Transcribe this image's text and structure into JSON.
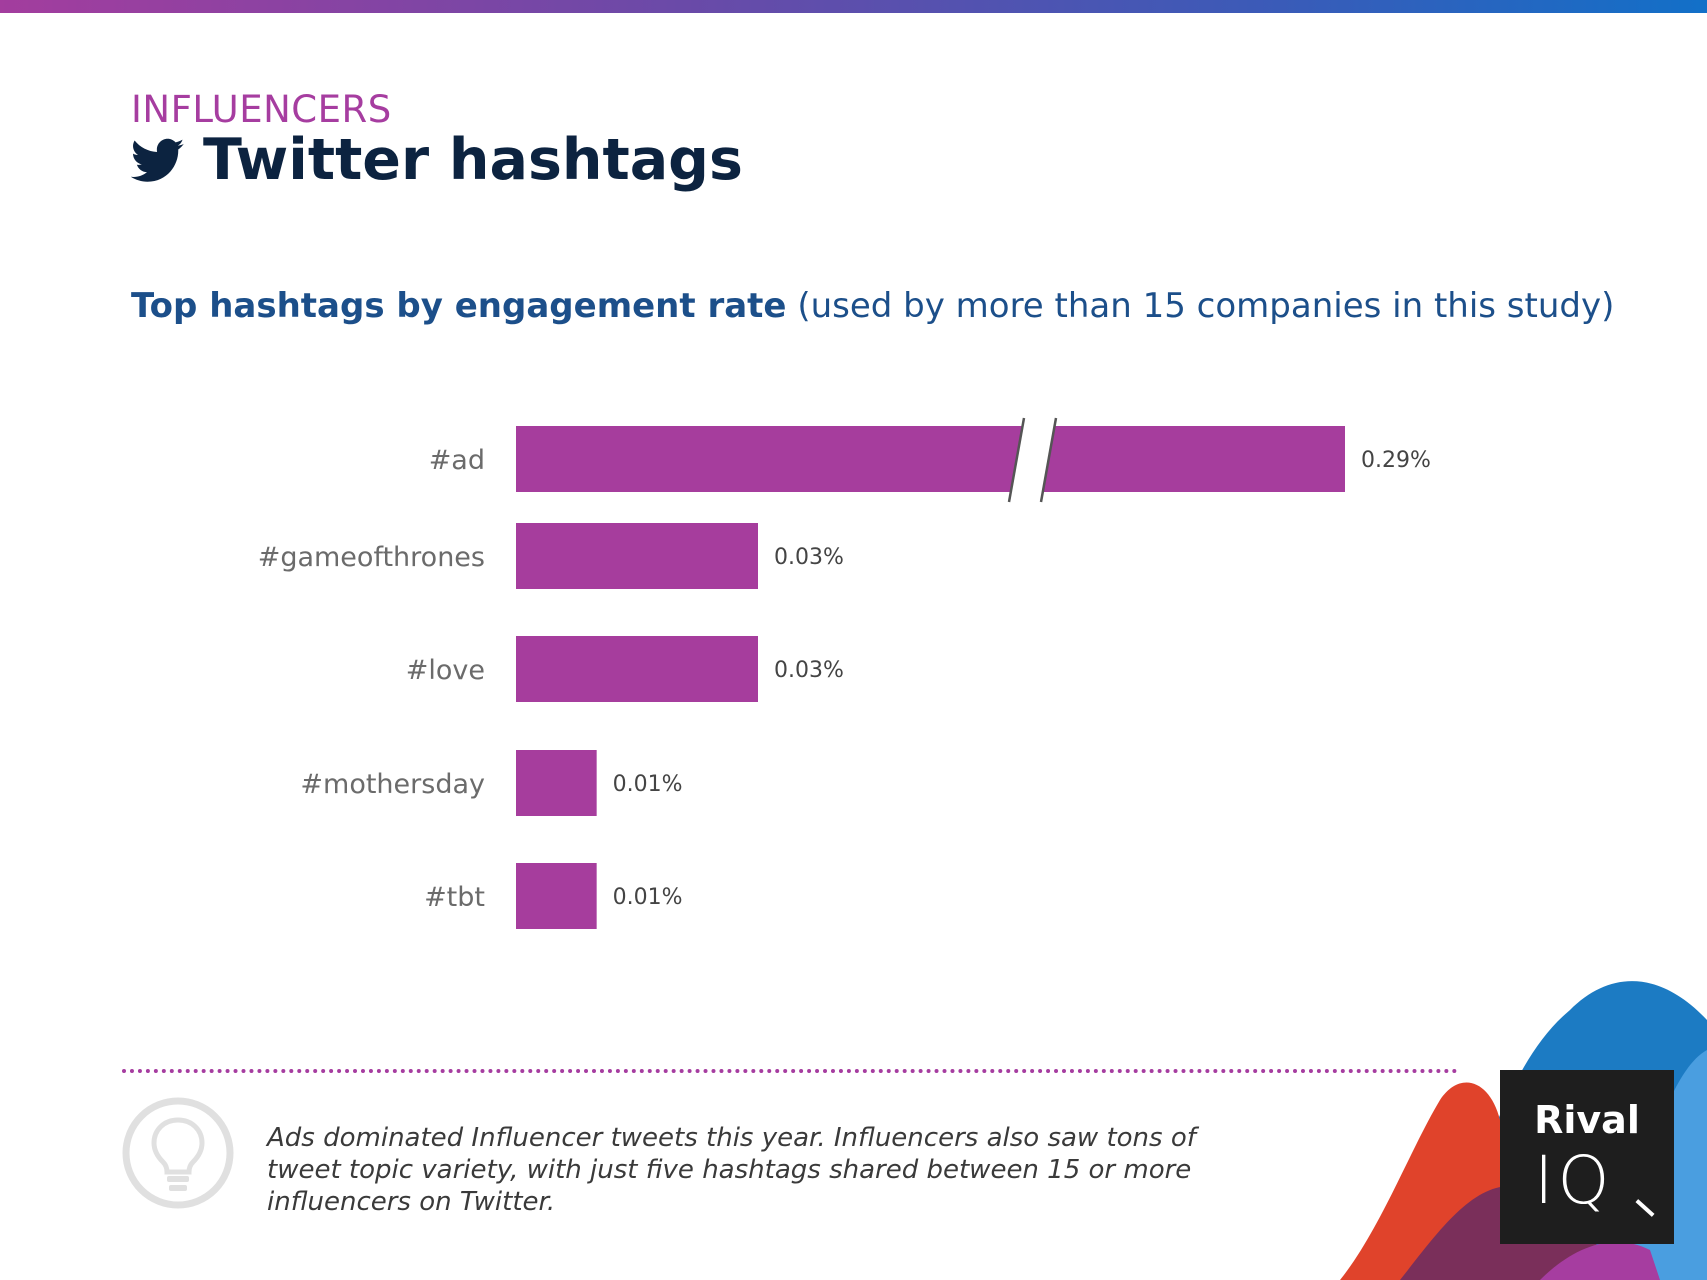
{
  "header": {
    "section": "INFLUENCERS",
    "title": "Twitter hashtags",
    "icon": "twitter-bird-icon"
  },
  "colors": {
    "accent": "#a63da0",
    "title": "#0c2340",
    "subtitle": "#1c4f8a",
    "bar": "#a63d9d"
  },
  "chart_data": {
    "type": "bar",
    "orientation": "horizontal",
    "title_bold": "Top hashtags by engagement rate",
    "title_rest": "(used by more than 15 companies in this study)",
    "categories": [
      "#ad",
      "#gameofthrones",
      "#love",
      "#mothersday",
      "#tbt"
    ],
    "values": [
      0.29,
      0.03,
      0.03,
      0.01,
      0.01
    ],
    "value_labels": [
      "0.29%",
      "0.03%",
      "0.03%",
      "0.01%",
      "0.01%"
    ],
    "unit": "%",
    "axis_break": {
      "category": "#ad"
    },
    "grid": false,
    "legend": "none"
  },
  "insight": {
    "icon": "lightbulb-icon",
    "text": "Ads dominated Influencer tweets this year. Influencers also saw tons of tweet topic variety, with just five hashtags shared between 15 or more influencers on Twitter."
  },
  "brand": {
    "line1": "Rival",
    "line2": "IQ"
  }
}
